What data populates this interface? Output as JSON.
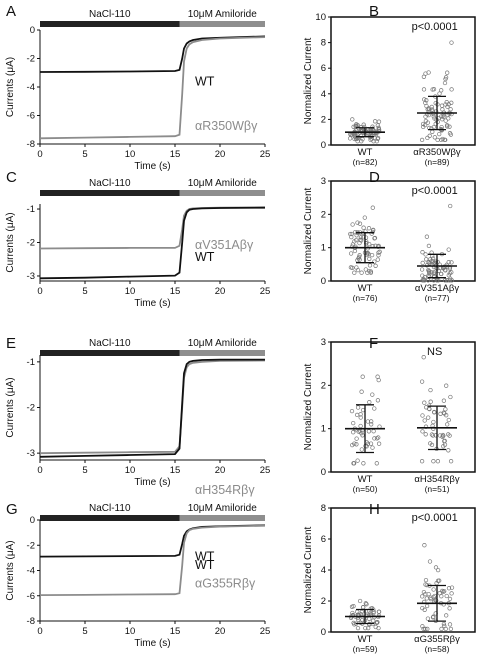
{
  "panels": [
    {
      "letter": "A",
      "kind": "trace",
      "bar_left": "NaCl-110",
      "bar_right": "10μM Amiloride",
      "ylabel": "Currents (μA)",
      "xlabel": "Time (s)",
      "labels": [
        {
          "text": "WT",
          "color": "#111111"
        },
        {
          "text": "αR350Wβγ",
          "color": "#8c8c8c"
        }
      ]
    },
    {
      "letter": "B",
      "kind": "scatter",
      "ylabel": "Normalized Current",
      "stat": "p<0.0001",
      "groups": [
        {
          "name": "WT",
          "n": "(n=82)"
        },
        {
          "name": "αR350Wβγ",
          "n": "(n=89)"
        }
      ]
    },
    {
      "letter": "C",
      "kind": "trace",
      "bar_left": "NaCl-110",
      "bar_right": "10μM Amiloride",
      "ylabel": "Currents (μA)",
      "xlabel": "Time (s)",
      "labels": [
        {
          "text": "αV351Aβγ",
          "color": "#8c8c8c"
        },
        {
          "text": "WT",
          "color": "#111111"
        }
      ]
    },
    {
      "letter": "D",
      "kind": "scatter",
      "ylabel": "Normalized Current",
      "stat": "p<0.0001",
      "groups": [
        {
          "name": "WT",
          "n": "(n=76)"
        },
        {
          "name": "αV351Aβγ",
          "n": "(n=77)"
        }
      ]
    },
    {
      "letter": "E",
      "kind": "trace",
      "bar_left": "NaCl-110",
      "bar_right": "10μM Amiloride",
      "ylabel": "Currents (μA)",
      "xlabel": "Time (s)",
      "labels": [
        {
          "text": "αH354Rβγ",
          "color": "#8c8c8c"
        },
        {
          "text": "WT",
          "color": "#111111"
        }
      ]
    },
    {
      "letter": "F",
      "kind": "scatter",
      "ylabel": "Normalized Current",
      "stat": "NS",
      "groups": [
        {
          "name": "WT",
          "n": "(n=50)"
        },
        {
          "name": "αH354Rβγ",
          "n": "(n=51)"
        }
      ]
    },
    {
      "letter": "G",
      "kind": "trace",
      "bar_left": "NaCl-110",
      "bar_right": "10μM Amiloride",
      "ylabel": "Currents (μA)",
      "xlabel": "Time (s)",
      "labels": [
        {
          "text": "WT",
          "color": "#111111"
        },
        {
          "text": "αG355Rβγ",
          "color": "#8c8c8c"
        }
      ]
    },
    {
      "letter": "H",
      "kind": "scatter",
      "ylabel": "Normalized Current",
      "stat": "p<0.0001",
      "groups": [
        {
          "name": "WT",
          "n": "(n=59)"
        },
        {
          "name": "αG355Rβγ",
          "n": "(n=58)"
        }
      ]
    }
  ],
  "chart_data": [
    {
      "type": "line",
      "panel": "A",
      "xlim": [
        0,
        25
      ],
      "ylim": [
        -8,
        0
      ],
      "xticks": [
        0,
        5,
        10,
        15,
        20,
        25
      ],
      "yticks": [
        0,
        -2,
        -4,
        -6,
        -8
      ],
      "amiloride_onset_s": 15.5,
      "series": [
        {
          "name": "WT",
          "color": "#111111",
          "x": [
            0,
            5,
            10,
            15,
            15.5,
            15.8,
            16,
            16.3,
            16.6,
            17,
            18,
            20,
            25
          ],
          "y": [
            -2.95,
            -2.93,
            -2.91,
            -2.88,
            -2.8,
            -2.0,
            -1.3,
            -0.95,
            -0.8,
            -0.7,
            -0.6,
            -0.55,
            -0.45
          ]
        },
        {
          "name": "αR350Wβγ",
          "color": "#8c8c8c",
          "x": [
            0,
            5,
            10,
            15,
            15.5,
            15.8,
            16,
            16.3,
            16.6,
            17,
            18,
            20,
            25
          ],
          "y": [
            -7.6,
            -7.55,
            -7.5,
            -7.45,
            -7.35,
            -4.5,
            -2.2,
            -1.3,
            -1.0,
            -0.85,
            -0.7,
            -0.6,
            -0.5
          ]
        }
      ]
    },
    {
      "type": "scatter",
      "panel": "B",
      "ylim": [
        0,
        10
      ],
      "yticks": [
        0,
        2,
        4,
        6,
        8,
        10
      ],
      "groups": [
        {
          "name": "WT",
          "n": 82,
          "mean": 1.0,
          "sd": 0.35,
          "min": 0.3,
          "max": 2.0
        },
        {
          "name": "αR350Wβγ",
          "n": 89,
          "mean": 2.5,
          "sd": 1.3,
          "min": 0.4,
          "max": 8.0
        }
      ]
    },
    {
      "type": "line",
      "panel": "C",
      "xlim": [
        0,
        25
      ],
      "ylim": [
        -3.15,
        -0.85
      ],
      "xticks": [
        0,
        5,
        10,
        15,
        20,
        25
      ],
      "yticks": [
        -1,
        -2,
        -3
      ],
      "amiloride_onset_s": 15.5,
      "series": [
        {
          "name": "αV351Aβγ",
          "color": "#8c8c8c",
          "x": [
            0,
            5,
            10,
            15,
            15.5,
            15.8,
            16,
            16.3,
            16.6,
            17,
            18,
            20,
            25
          ],
          "y": [
            -2.18,
            -2.17,
            -2.16,
            -2.16,
            -2.1,
            -1.6,
            -1.2,
            -1.05,
            -1.0,
            -0.98,
            -0.97,
            -0.96,
            -0.95
          ]
        },
        {
          "name": "WT",
          "color": "#111111",
          "x": [
            0,
            5,
            10,
            15,
            15.5,
            15.8,
            16,
            16.3,
            16.6,
            17,
            18,
            20,
            25
          ],
          "y": [
            -3.07,
            -3.05,
            -3.02,
            -2.99,
            -2.9,
            -2.0,
            -1.35,
            -1.1,
            -1.02,
            -1.0,
            -0.98,
            -0.97,
            -0.96
          ]
        }
      ]
    },
    {
      "type": "scatter",
      "panel": "D",
      "ylim": [
        0,
        3
      ],
      "yticks": [
        0,
        1,
        2,
        3
      ],
      "groups": [
        {
          "name": "WT",
          "n": 76,
          "mean": 1.0,
          "sd": 0.45,
          "min": 0.25,
          "max": 2.2
        },
        {
          "name": "αV351Aβγ",
          "n": 77,
          "mean": 0.45,
          "sd": 0.35,
          "min": 0.02,
          "max": 2.25
        }
      ]
    },
    {
      "type": "line",
      "panel": "E",
      "xlim": [
        0,
        25
      ],
      "ylim": [
        -3.15,
        -0.85
      ],
      "xticks": [
        0,
        5,
        10,
        15,
        20,
        25
      ],
      "yticks": [
        -1,
        -2,
        -3
      ],
      "amiloride_onset_s": 15.5,
      "series": [
        {
          "name": "αH354Rβγ",
          "color": "#8c8c8c",
          "x": [
            0,
            5,
            10,
            15,
            15.5,
            15.8,
            16,
            16.3,
            16.6,
            17,
            18,
            20,
            25
          ],
          "y": [
            -3.0,
            -2.99,
            -2.98,
            -2.97,
            -2.85,
            -2.0,
            -1.35,
            -1.12,
            -1.05,
            -1.02,
            -1.0,
            -0.98,
            -0.97
          ]
        },
        {
          "name": "WT",
          "color": "#111111",
          "x": [
            0,
            5,
            10,
            15,
            15.5,
            15.8,
            16,
            16.3,
            16.6,
            17,
            18,
            20,
            25
          ],
          "y": [
            -3.08,
            -3.06,
            -3.04,
            -3.02,
            -2.9,
            -1.9,
            -1.25,
            -1.05,
            -1.0,
            -0.98,
            -0.96,
            -0.95,
            -0.95
          ]
        }
      ]
    },
    {
      "type": "scatter",
      "panel": "F",
      "ylim": [
        0,
        3
      ],
      "yticks": [
        0,
        1,
        2,
        3
      ],
      "groups": [
        {
          "name": "WT",
          "n": 50,
          "mean": 1.0,
          "sd": 0.55,
          "min": 0.2,
          "max": 2.2
        },
        {
          "name": "αH354Rβγ",
          "n": 51,
          "mean": 1.02,
          "sd": 0.5,
          "min": 0.25,
          "max": 2.65
        }
      ]
    },
    {
      "type": "line",
      "panel": "G",
      "xlim": [
        0,
        25
      ],
      "ylim": [
        -8,
        0
      ],
      "xticks": [
        0,
        5,
        10,
        15,
        20,
        25
      ],
      "yticks": [
        0,
        -2,
        -4,
        -6,
        -8
      ],
      "amiloride_onset_s": 15.5,
      "series": [
        {
          "name": "WT",
          "color": "#111111",
          "x": [
            0,
            5,
            10,
            15,
            15.5,
            15.8,
            16,
            16.3,
            16.6,
            17,
            18,
            20,
            25
          ],
          "y": [
            -2.9,
            -2.88,
            -2.86,
            -2.84,
            -2.75,
            -1.9,
            -1.25,
            -0.9,
            -0.75,
            -0.65,
            -0.55,
            -0.5,
            -0.42
          ]
        },
        {
          "name": "αG355Rβγ",
          "color": "#8c8c8c",
          "x": [
            0,
            5,
            10,
            15,
            15.5,
            15.8,
            16,
            16.3,
            16.6,
            17,
            18,
            20,
            25
          ],
          "y": [
            -5.95,
            -5.93,
            -5.9,
            -5.88,
            -5.8,
            -3.6,
            -1.8,
            -1.05,
            -0.8,
            -0.7,
            -0.6,
            -0.52,
            -0.45
          ]
        }
      ]
    },
    {
      "type": "scatter",
      "panel": "H",
      "ylim": [
        0,
        8
      ],
      "yticks": [
        0,
        2,
        4,
        6,
        8
      ],
      "groups": [
        {
          "name": "WT",
          "n": 59,
          "mean": 1.0,
          "sd": 0.45,
          "min": 0.25,
          "max": 2.0
        },
        {
          "name": "αG355Rβγ",
          "n": 58,
          "mean": 1.85,
          "sd": 1.15,
          "min": 0.2,
          "max": 5.6
        }
      ]
    }
  ]
}
